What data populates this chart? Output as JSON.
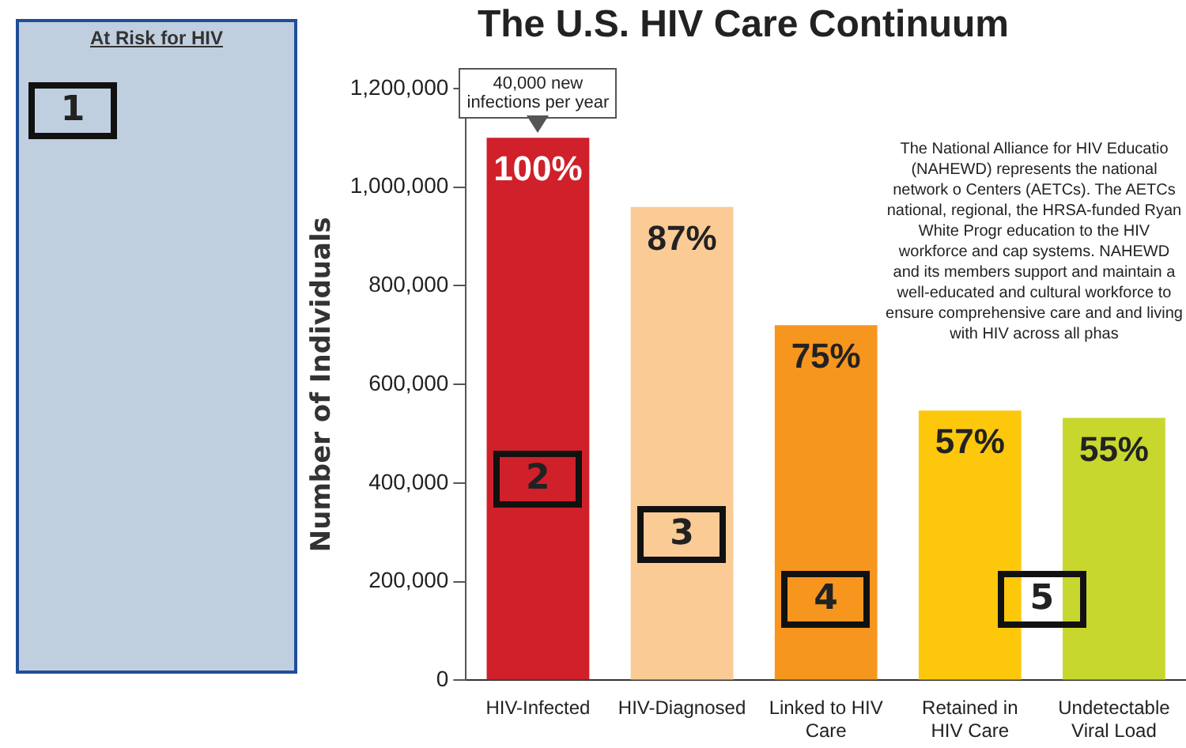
{
  "chart_data": {
    "type": "bar",
    "title": "The U.S. HIV Care Continuum",
    "ylabel": "Number of Individuals",
    "categories": [
      "HIV-Infected",
      "HIV-Diagnosed",
      "Linked to HIV Care",
      "Retained in HIV Care",
      "Undetectable Viral Load"
    ],
    "values": [
      1100000,
      960000,
      720000,
      547000,
      532000
    ],
    "colors": [
      "#d0202a",
      "#fbcb96",
      "#f7961e",
      "#fdc80c",
      "#c8d72e"
    ],
    "ylim": [
      0,
      1200000
    ],
    "yticks": [
      0,
      {
        "value": 200000,
        "label": "200,000"
      },
      {
        "value": 400000,
        "label": "400,000"
      },
      {
        "value": 600000,
        "label": "600,000"
      },
      {
        "value": 800000,
        "label": "800,000"
      },
      {
        "value": 1000000,
        "label": "1,000,000"
      },
      {
        "value": 1200000,
        "label": "1,200,000"
      }
    ],
    "grid": false,
    "legend": false,
    "annotations": [
      {
        "text": "40,000 new infections per year",
        "x": "HIV-Infected",
        "y": 1100000
      },
      {
        "text": "100%",
        "x": "HIV-Infected",
        "y": 1100000
      },
      {
        "text": "87%",
        "x": "HIV-Diagnosed",
        "y": 960000
      },
      {
        "text": "75%",
        "x": "Linked to HIV Care",
        "y": 720000
      },
      {
        "text": "57%",
        "x": "Retained in HIV Care",
        "y": 547000
      },
      {
        "text": "55%",
        "x": "Undetectable Viral Load",
        "y": 532000
      },
      "At Risk for HIV",
      "The National Alliance for HIV Educatio (NAHEWD) represents the national network o Centers (AETCs). The AETCs national, regional, the HRSA-funded Ryan White Progr education to the HIV workforce and cap systems. NAHEWD and its members support and maintain a well-educated and cultural workforce to ensure comprehensive care and and living with HIV across all phas",
      "1",
      "2",
      "3",
      "4",
      "5"
    ]
  }
}
